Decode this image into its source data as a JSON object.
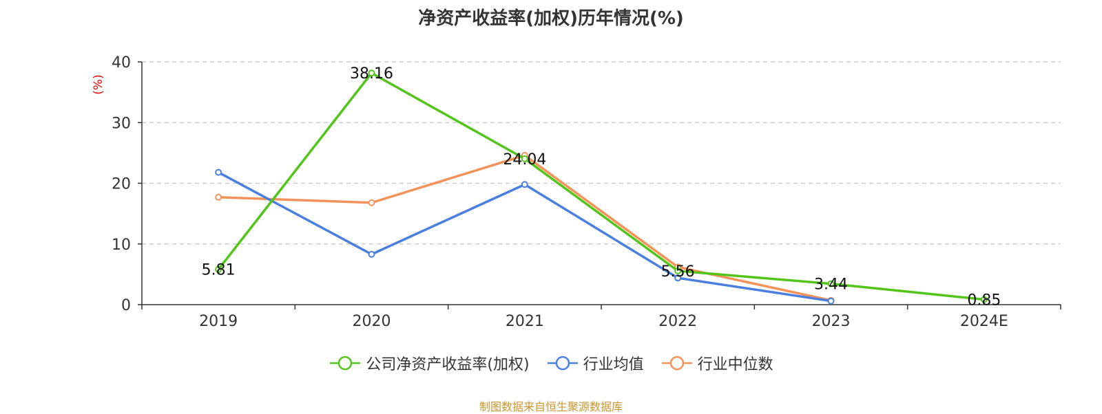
{
  "chart_data": {
    "type": "line",
    "title": "净资产收益率(加权)历年情况(%)",
    "ylabel": "(%)",
    "xlabel": "",
    "categories": [
      "2019",
      "2020",
      "2021",
      "2022",
      "2023",
      "2024E"
    ],
    "ylim": [
      0,
      40
    ],
    "yticks": [
      0,
      10,
      20,
      30,
      40
    ],
    "grid": true,
    "legend_position": "bottom",
    "series": [
      {
        "name": "公司净资产收益率(加权)",
        "color": "#52c41a",
        "values": [
          5.81,
          38.16,
          24.04,
          5.56,
          3.44,
          0.85
        ],
        "labels": [
          "5.81",
          "38.16",
          "24.04",
          "5.56",
          "3.44",
          "0.85"
        ]
      },
      {
        "name": "行业均值",
        "color": "#4a7fe0",
        "values": [
          21.8,
          8.3,
          19.8,
          4.4,
          0.6,
          null
        ]
      },
      {
        "name": "行业中位数",
        "color": "#f5925a",
        "values": [
          17.7,
          16.8,
          24.6,
          6.2,
          0.7,
          null
        ]
      }
    ]
  },
  "source_text": "制图数据来自恒生聚源数据库"
}
